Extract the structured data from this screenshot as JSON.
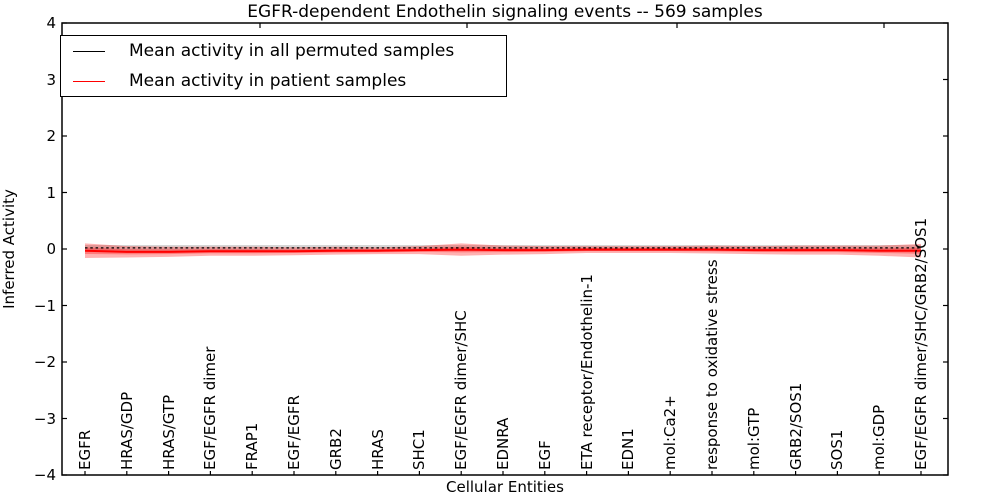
{
  "chart_data": {
    "type": "line",
    "title": "EGFR-dependent Endothelin signaling events -- 569 samples",
    "xlabel": "Cellular Entities",
    "ylabel": "Inferred Activity",
    "ylim": [
      -4,
      4
    ],
    "yticks": [
      -4,
      -3,
      -2,
      -1,
      0,
      1,
      2,
      3,
      4
    ],
    "ytick_labels": [
      "−4",
      "−3",
      "−2",
      "−1",
      "0",
      "1",
      "2",
      "3",
      "4"
    ],
    "grid": false,
    "legend_position": "upper left",
    "frame_color": "#000000",
    "background_color": "#ffffff",
    "categories": [
      "EGFR",
      "HRAS/GDP",
      "HRAS/GTP",
      "EGF/EGFR dimer",
      "FRAP1",
      "EGF/EGFR",
      "GRB2",
      "HRAS",
      "SHC1",
      "EGF/EGFR dimer/SHC",
      "EDNRA",
      "EGF",
      "ETA receptor/Endothelin-1",
      "EDN1",
      "mol:Ca2+",
      "response to oxidative stress",
      "mol:GTP",
      "GRB2/SOS1",
      "SOS1",
      "mol:GDP",
      "EGF/EGFR dimer/SHC/GRB2/SOS1"
    ],
    "series": [
      {
        "name": "Mean activity in all permuted samples",
        "color": "#000000",
        "line_style": "dashed",
        "band_color": "rgba(120,120,120,0.30)",
        "values": [
          0.02,
          0.02,
          0.02,
          0.02,
          0.02,
          0.02,
          0.02,
          0.02,
          0.02,
          0.02,
          0.02,
          0.02,
          0.02,
          0.02,
          0.02,
          0.02,
          0.02,
          0.02,
          0.02,
          0.02,
          0.02
        ],
        "band": [
          0.05,
          0.05,
          0.05,
          0.05,
          0.05,
          0.05,
          0.05,
          0.05,
          0.05,
          0.05,
          0.05,
          0.05,
          0.05,
          0.05,
          0.05,
          0.05,
          0.05,
          0.05,
          0.05,
          0.05,
          0.05
        ]
      },
      {
        "name": "Mean activity in patient samples",
        "color": "#ff0000",
        "line_style": "solid",
        "band_color": "rgba(255,0,0,0.30)",
        "values": [
          -0.03,
          -0.05,
          -0.05,
          -0.04,
          -0.04,
          -0.04,
          -0.03,
          -0.03,
          -0.02,
          -0.01,
          -0.02,
          -0.02,
          -0.01,
          -0.01,
          -0.01,
          -0.01,
          -0.02,
          -0.02,
          -0.02,
          -0.03,
          -0.03
        ],
        "band": [
          0.13,
          0.1,
          0.09,
          0.08,
          0.08,
          0.07,
          0.07,
          0.06,
          0.07,
          0.11,
          0.08,
          0.07,
          0.06,
          0.06,
          0.06,
          0.07,
          0.07,
          0.08,
          0.08,
          0.09,
          0.12
        ]
      }
    ]
  }
}
